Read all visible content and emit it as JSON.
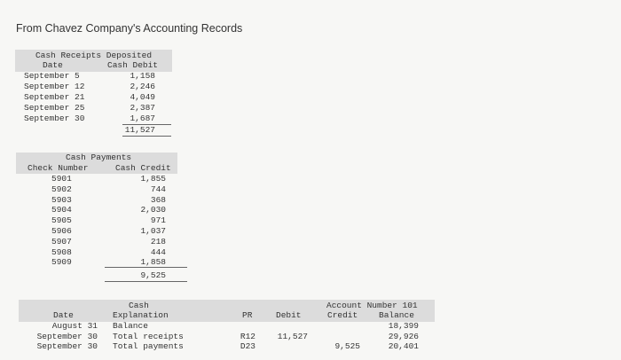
{
  "title": "From Chavez Company's Accounting Records",
  "receipts": {
    "caption": "Cash Receipts Deposited",
    "col_date": "Date",
    "col_amount": "Cash Debit",
    "rows": [
      {
        "date": "September 5",
        "amount": "1,158"
      },
      {
        "date": "September 12",
        "amount": "2,246"
      },
      {
        "date": "September 21",
        "amount": "4,049"
      },
      {
        "date": "September 25",
        "amount": "2,387"
      },
      {
        "date": "September 30",
        "amount": "1,687"
      }
    ],
    "total": "11,527"
  },
  "payments": {
    "caption": "Cash Payments",
    "col_check": "Check Number",
    "col_amount": "Cash Credit",
    "rows": [
      {
        "check": "5901",
        "amount": "1,855"
      },
      {
        "check": "5902",
        "amount": "744"
      },
      {
        "check": "5903",
        "amount": "368"
      },
      {
        "check": "5904",
        "amount": "2,030"
      },
      {
        "check": "5905",
        "amount": "971"
      },
      {
        "check": "5906",
        "amount": "1,037"
      },
      {
        "check": "5907",
        "amount": "218"
      },
      {
        "check": "5908",
        "amount": "444"
      },
      {
        "check": "5909",
        "amount": "1,858"
      }
    ],
    "total": "9,525"
  },
  "ledger": {
    "account_name": "Cash",
    "account_number": "Account Number 101",
    "col_date": "Date",
    "col_explanation": "Explanation",
    "col_pr": "PR",
    "col_debit": "Debit",
    "col_credit": "Credit",
    "col_balance": "Balance",
    "rows": [
      {
        "date": "August 31",
        "explanation": "Balance",
        "pr": "",
        "debit": "",
        "credit": "",
        "balance": "18,399"
      },
      {
        "date": "September 30",
        "explanation": "Total receipts",
        "pr": "R12",
        "debit": "11,527",
        "credit": "",
        "balance": "29,926"
      },
      {
        "date": "September 30",
        "explanation": "Total payments",
        "pr": "D23",
        "debit": "",
        "credit": "9,525",
        "balance": "20,401"
      }
    ]
  }
}
